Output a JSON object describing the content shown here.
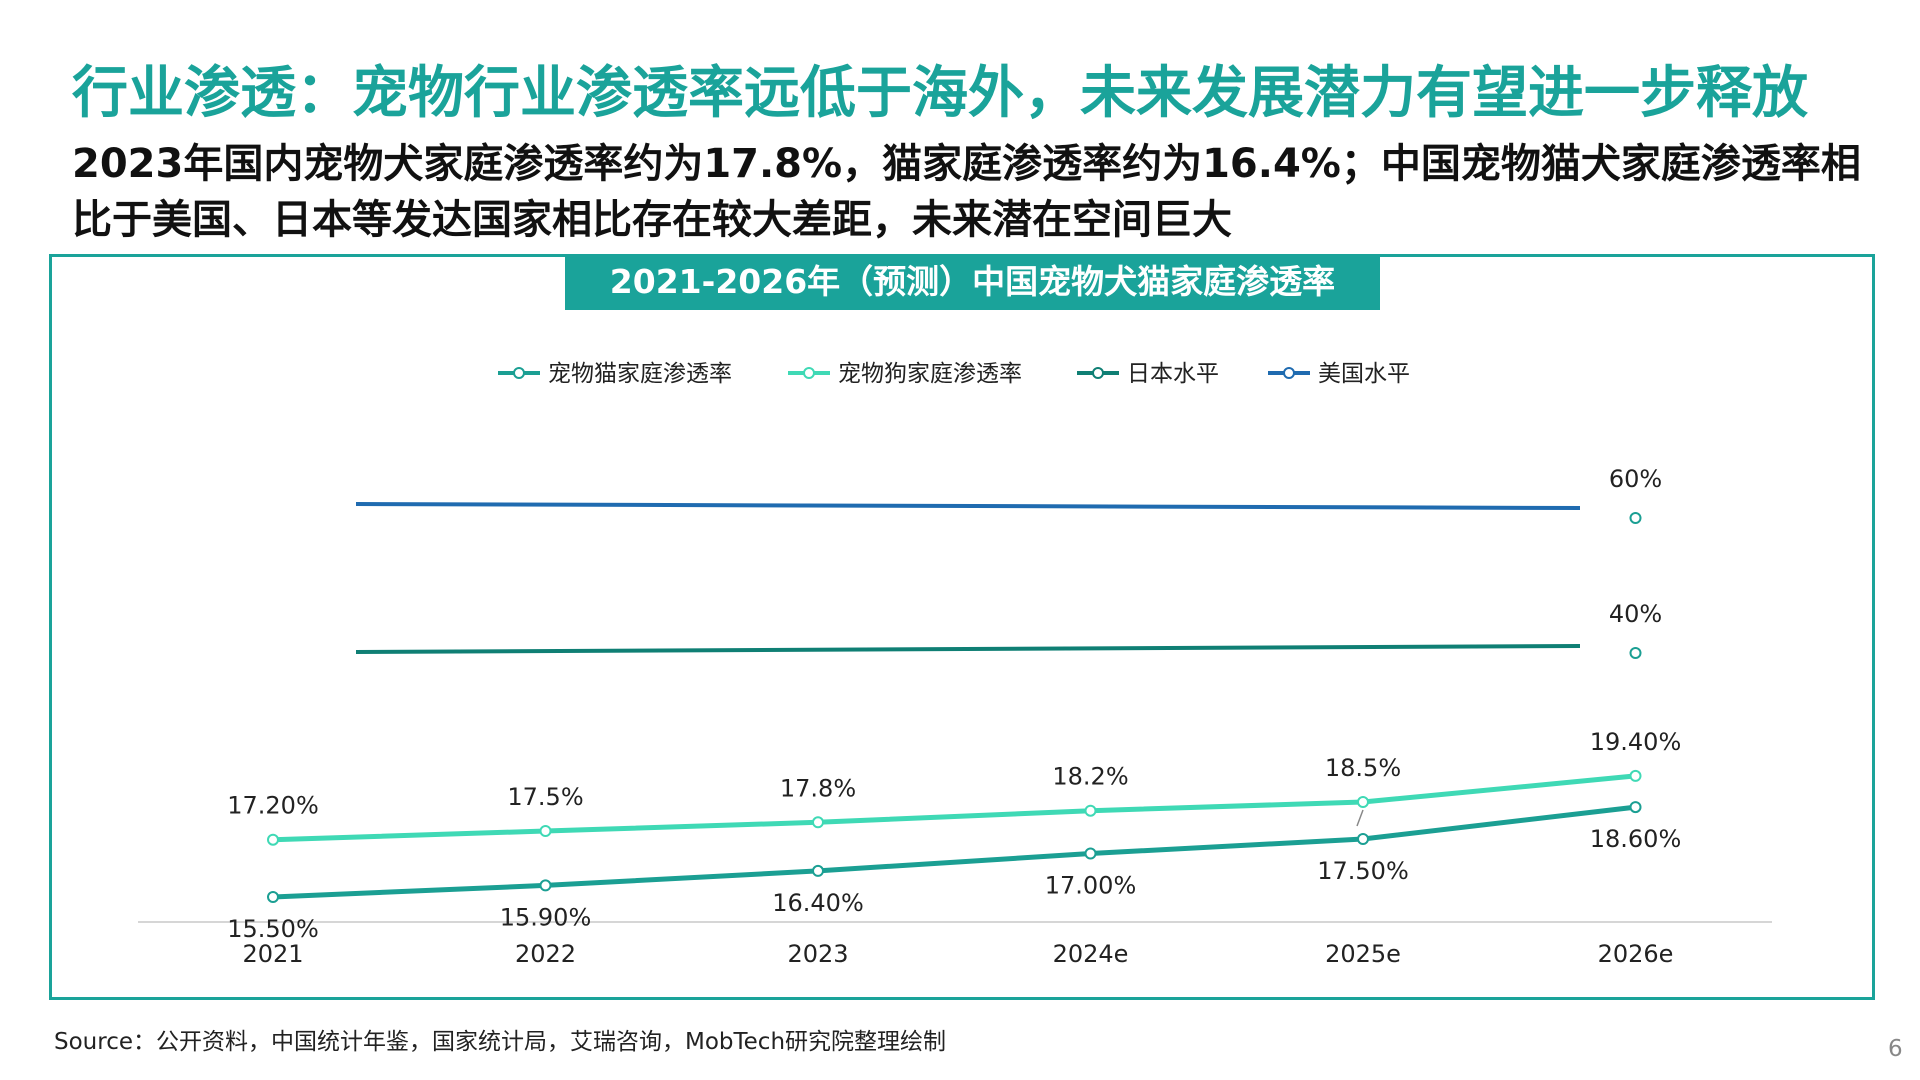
{
  "headline": "行业渗透：宠物行业渗透率远低于海外，未来发展潜力有望进一步释放",
  "subline": "2023年国内宠物犬家庭渗透率约为17.8%，猫家庭渗透率约为16.4%；中国宠物猫犬家庭渗透率相比于美国、日本等发达国家相比存在较大差距，未来潜在空间巨大",
  "source": "Source：公开资料，中国统计年鉴，国家统计局，艾瑞咨询，MobTech研究院整理绘制",
  "page_number": "6",
  "colors": {
    "accent": "#1aa39a",
    "cat": "#1b9f93",
    "dog": "#3fd9b5",
    "japan": "#0f7f74",
    "usa": "#1f6bb0"
  },
  "chart_data": {
    "type": "line",
    "title": "2021-2026年（预测）中国宠物犬猫家庭渗透率",
    "categories": [
      "2021",
      "2022",
      "2023",
      "2024e",
      "2025e",
      "2026e"
    ],
    "legend_position": "top",
    "series": [
      {
        "name": "宠物猫家庭渗透率",
        "values": [
          15.5,
          15.9,
          16.4,
          17.0,
          17.5,
          18.6
        ],
        "labels": [
          "15.50%",
          "15.90%",
          "16.40%",
          "17.00%",
          "17.50%",
          "18.60%"
        ]
      },
      {
        "name": "宠物狗家庭渗透率",
        "values": [
          17.2,
          17.5,
          17.8,
          18.2,
          18.5,
          19.4
        ],
        "labels": [
          "17.20%",
          "17.5%",
          "17.8%",
          "18.2%",
          "18.5%",
          "19.40%"
        ]
      },
      {
        "name": "日本水平",
        "values": [
          40,
          40,
          40,
          40,
          40,
          40
        ],
        "labels": [
          "",
          "",
          "",
          "",
          "",
          "40%"
        ]
      },
      {
        "name": "美国水平",
        "values": [
          60,
          60,
          60,
          60,
          60,
          60
        ],
        "labels": [
          "",
          "",
          "",
          "",
          "",
          "60%"
        ]
      }
    ],
    "grid": false
  }
}
